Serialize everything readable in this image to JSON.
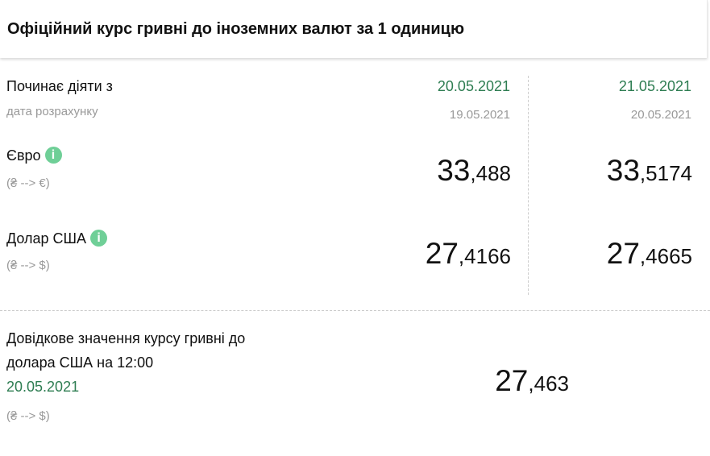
{
  "title": "Офіційний курс гривні до іноземних валют за 1 одиницю",
  "effective_label": "Починає діяти з",
  "calc_date_label": "дата розрахунку",
  "columns": [
    {
      "effective_date": "20.05.2021",
      "calc_date": "19.05.2021"
    },
    {
      "effective_date": "21.05.2021",
      "calc_date": "20.05.2021"
    }
  ],
  "currencies": [
    {
      "name": "Євро",
      "direction": "(₴ --> €)",
      "info_icon": "i",
      "rates": [
        {
          "int": "33",
          "frac": ",488"
        },
        {
          "int": "33",
          "frac": ",5174"
        }
      ]
    },
    {
      "name": "Долар США",
      "direction": "(₴ --> $)",
      "info_icon": "i",
      "rates": [
        {
          "int": "27",
          "frac": ",4166"
        },
        {
          "int": "27",
          "frac": ",4665"
        }
      ]
    }
  ],
  "reference": {
    "line1": "Довідкове значення курсу гривні до",
    "line2": "долара США на 12:00",
    "date": "20.05.2021",
    "direction": "(₴ --> $)",
    "rate": {
      "int": "27",
      "frac": ",463"
    }
  },
  "colors": {
    "accent_green": "#2e7d52",
    "info_icon": "#6fcf97"
  }
}
